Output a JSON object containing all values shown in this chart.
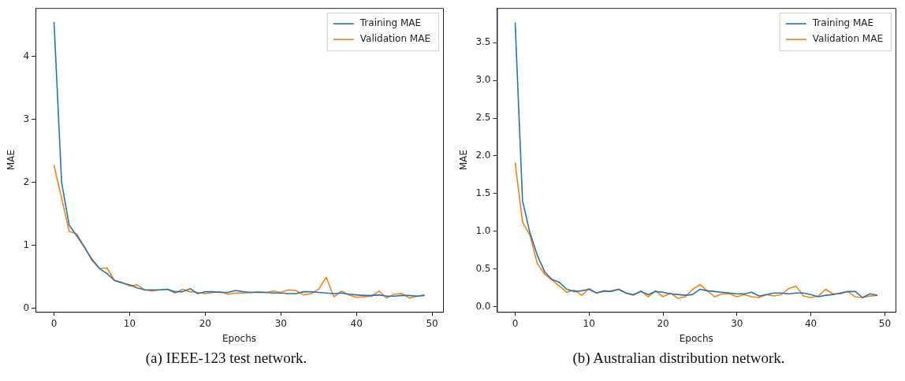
{
  "chart_data": [
    {
      "type": "line",
      "xlabel": "Epochs",
      "ylabel": "MAE",
      "annotations": [
        "(a) IEEE-123 test network."
      ],
      "legend": "top right",
      "grid": false,
      "marker": "none",
      "line_style": "solid",
      "x": [
        0,
        1,
        2,
        3,
        4,
        5,
        6,
        7,
        8,
        9,
        10,
        11,
        12,
        13,
        14,
        15,
        16,
        17,
        18,
        19,
        20,
        21,
        22,
        23,
        24,
        25,
        26,
        27,
        28,
        29,
        30,
        31,
        32,
        33,
        34,
        35,
        36,
        37,
        38,
        39,
        40,
        41,
        42,
        43,
        44,
        45,
        46,
        47,
        48,
        49
      ],
      "xlim": [
        -2.45,
        51.45
      ],
      "xticks": [
        0,
        10,
        20,
        30,
        40,
        50
      ],
      "ylim": [
        -0.06,
        4.77
      ],
      "yticks": [
        0,
        1,
        2,
        3,
        4
      ],
      "series": [
        {
          "name": "Training MAE",
          "color": "#1f77b4",
          "values": [
            4.55,
            2.0,
            1.32,
            1.15,
            0.97,
            0.78,
            0.63,
            0.55,
            0.44,
            0.4,
            0.37,
            0.32,
            0.29,
            0.29,
            0.29,
            0.3,
            0.26,
            0.26,
            0.31,
            0.23,
            0.26,
            0.26,
            0.25,
            0.25,
            0.28,
            0.26,
            0.25,
            0.25,
            0.25,
            0.24,
            0.24,
            0.23,
            0.23,
            0.26,
            0.26,
            0.25,
            0.24,
            0.23,
            0.24,
            0.22,
            0.21,
            0.2,
            0.2,
            0.21,
            0.19,
            0.19,
            0.2,
            0.2,
            0.19,
            0.2
          ]
        },
        {
          "name": "Validation MAE",
          "color": "#ff7f0e",
          "values": [
            2.27,
            1.75,
            1.22,
            1.18,
            0.98,
            0.76,
            0.63,
            0.64,
            0.44,
            0.41,
            0.35,
            0.37,
            0.29,
            0.27,
            0.29,
            0.3,
            0.24,
            0.3,
            0.26,
            0.25,
            0.23,
            0.25,
            0.26,
            0.22,
            0.24,
            0.24,
            0.25,
            0.26,
            0.25,
            0.27,
            0.25,
            0.29,
            0.28,
            0.21,
            0.23,
            0.3,
            0.49,
            0.18,
            0.27,
            0.21,
            0.17,
            0.18,
            0.19,
            0.27,
            0.16,
            0.22,
            0.23,
            0.16,
            0.19,
            0.21
          ]
        }
      ]
    },
    {
      "type": "line",
      "xlabel": "Epochs",
      "ylabel": "MAE",
      "annotations": [
        "(b) Australian distribution network."
      ],
      "legend": "top right",
      "grid": false,
      "marker": "none",
      "line_style": "solid",
      "x": [
        0,
        1,
        2,
        3,
        4,
        5,
        6,
        7,
        8,
        9,
        10,
        11,
        12,
        13,
        14,
        15,
        16,
        17,
        18,
        19,
        20,
        21,
        22,
        23,
        24,
        25,
        26,
        27,
        28,
        29,
        30,
        31,
        32,
        33,
        34,
        35,
        36,
        37,
        38,
        39,
        40,
        41,
        42,
        43,
        44,
        45,
        46,
        47,
        48,
        49
      ],
      "xlim": [
        -2.45,
        51.45
      ],
      "xticks": [
        0,
        10,
        20,
        30,
        40,
        50
      ],
      "ylim": [
        -0.07,
        3.96
      ],
      "yticks": [
        {
          "value": 0,
          "label": "0.0"
        },
        {
          "value": 0.5,
          "label": "0.5"
        },
        {
          "value": 1,
          "label": "1.0"
        },
        {
          "value": 1.5,
          "label": "1.5"
        },
        {
          "value": 2,
          "label": "2.0"
        },
        {
          "value": 2.5,
          "label": "2.5"
        },
        {
          "value": 3,
          "label": "3.0"
        },
        {
          "value": 3.5,
          "label": "3.5"
        }
      ],
      "series": [
        {
          "name": "Training MAE",
          "color": "#1f77b4",
          "values": [
            3.77,
            1.4,
            0.98,
            0.68,
            0.46,
            0.36,
            0.32,
            0.23,
            0.2,
            0.21,
            0.23,
            0.18,
            0.21,
            0.2,
            0.23,
            0.18,
            0.16,
            0.2,
            0.16,
            0.2,
            0.19,
            0.17,
            0.16,
            0.15,
            0.16,
            0.23,
            0.21,
            0.2,
            0.19,
            0.18,
            0.17,
            0.17,
            0.19,
            0.14,
            0.16,
            0.18,
            0.18,
            0.17,
            0.18,
            0.18,
            0.16,
            0.13,
            0.15,
            0.16,
            0.18,
            0.2,
            0.2,
            0.12,
            0.17,
            0.15
          ]
        },
        {
          "name": "Validation MAE",
          "color": "#ff7f0e",
          "values": [
            1.91,
            1.12,
            0.95,
            0.57,
            0.43,
            0.35,
            0.27,
            0.19,
            0.22,
            0.15,
            0.24,
            0.18,
            0.2,
            0.21,
            0.23,
            0.18,
            0.15,
            0.21,
            0.13,
            0.21,
            0.13,
            0.18,
            0.11,
            0.13,
            0.23,
            0.29,
            0.21,
            0.13,
            0.17,
            0.17,
            0.13,
            0.16,
            0.13,
            0.12,
            0.16,
            0.14,
            0.16,
            0.24,
            0.27,
            0.14,
            0.12,
            0.14,
            0.23,
            0.17,
            0.17,
            0.2,
            0.13,
            0.12,
            0.14,
            0.15
          ]
        }
      ]
    }
  ]
}
